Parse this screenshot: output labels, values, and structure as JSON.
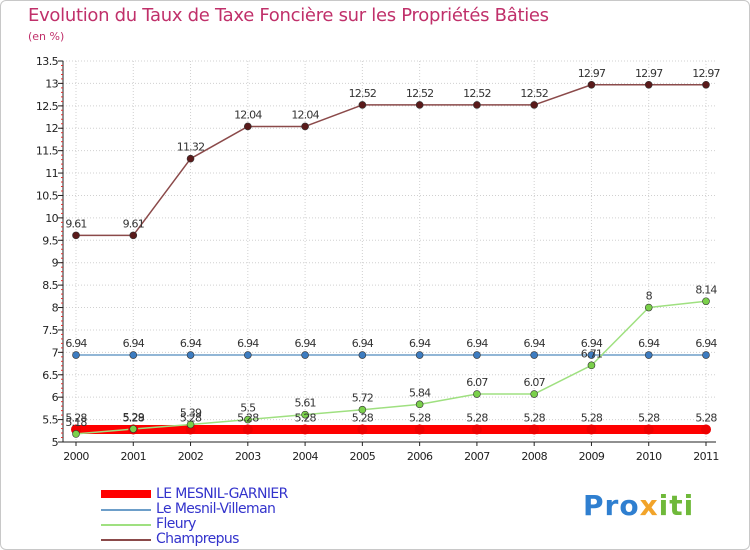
{
  "header": {
    "title": "Evolution du Taux de Taxe Foncière sur les Propriétés Bâties",
    "unit": "(en %)"
  },
  "brand": {
    "p1": "Pro",
    "p2": "x",
    "p3": "iti"
  },
  "chart_data": {
    "type": "line",
    "title": "Evolution du Taux de Taxe Foncière sur les Propriétés Bâties",
    "ylabel": "(en %)",
    "xlabel": "",
    "ylim": [
      5,
      13.5
    ],
    "yticks": [
      "5",
      "5.5",
      "6",
      "6.5",
      "7",
      "7.5",
      "8",
      "8.5",
      "9",
      "9.5",
      "10",
      "10.5",
      "11",
      "11.5",
      "12",
      "12.5",
      "13",
      "13.5"
    ],
    "categories": [
      "2000",
      "2001",
      "2002",
      "2003",
      "2004",
      "2005",
      "2006",
      "2007",
      "2008",
      "2009",
      "2010",
      "2011"
    ],
    "series": [
      {
        "name": "LE MESNIL-GARNIER",
        "color": "#ff0000",
        "marker": "#ee0000",
        "values": [
          5.28,
          5.28,
          5.28,
          5.28,
          5.28,
          5.28,
          5.28,
          5.28,
          5.28,
          5.28,
          5.28,
          5.28
        ],
        "labels": [
          "5.28",
          "5.28",
          "5.28",
          "5.28",
          "5.28",
          "5.28",
          "5.28",
          "5.28",
          "5.28",
          "5.28",
          "5.28",
          "5.28"
        ]
      },
      {
        "name": "Le Mesnil-Villeman",
        "color": "#6d9ec9",
        "marker": "#3d7cc0",
        "values": [
          6.94,
          6.94,
          6.94,
          6.94,
          6.94,
          6.94,
          6.94,
          6.94,
          6.94,
          6.94,
          6.94,
          6.94
        ],
        "labels": [
          "6.94",
          "6.94",
          "6.94",
          "6.94",
          "6.94",
          "6.94",
          "6.94",
          "6.94",
          "6.94",
          "6.94",
          "6.94",
          "6.94"
        ]
      },
      {
        "name": "Fleury",
        "color": "#9fe080",
        "marker": "#7ad04a",
        "values": [
          5.18,
          5.29,
          5.39,
          5.5,
          5.61,
          5.72,
          5.84,
          6.07,
          6.07,
          6.71,
          8,
          8.14
        ],
        "labels": [
          "5.18",
          "5.29",
          "5.39",
          "5.5",
          "5.61",
          "5.72",
          "5.84",
          "6.07",
          "6.07",
          "6.71",
          "8",
          "8.14"
        ]
      },
      {
        "name": "Champrepus",
        "color": "#8b4a4a",
        "marker": "#5a1a1a",
        "values": [
          9.61,
          9.61,
          11.32,
          12.04,
          12.04,
          12.52,
          12.52,
          12.52,
          12.52,
          12.97,
          12.97,
          12.97
        ],
        "labels": [
          "9.61",
          "9.61",
          "11.32",
          "12.04",
          "12.04",
          "12.52",
          "12.52",
          "12.52",
          "12.52",
          "12.97",
          "12.97",
          "12.97"
        ]
      }
    ]
  }
}
